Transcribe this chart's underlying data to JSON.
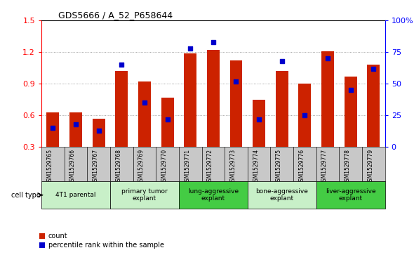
{
  "title": "GDS5666 / A_52_P658644",
  "samples": [
    "GSM1529765",
    "GSM1529766",
    "GSM1529767",
    "GSM1529768",
    "GSM1529769",
    "GSM1529770",
    "GSM1529771",
    "GSM1529772",
    "GSM1529773",
    "GSM1529774",
    "GSM1529775",
    "GSM1529776",
    "GSM1529777",
    "GSM1529778",
    "GSM1529779"
  ],
  "counts": [
    0.63,
    0.63,
    0.57,
    1.02,
    0.92,
    0.77,
    1.19,
    1.22,
    1.12,
    0.75,
    1.02,
    0.9,
    1.21,
    0.97,
    1.08
  ],
  "percentiles": [
    15,
    18,
    13,
    65,
    35,
    22,
    78,
    83,
    52,
    22,
    68,
    25,
    70,
    45,
    62
  ],
  "ylim_left": [
    0.3,
    1.5
  ],
  "ylim_right": [
    0,
    100
  ],
  "yticks_left": [
    0.3,
    0.6,
    0.9,
    1.2,
    1.5
  ],
  "yticks_right": [
    0,
    25,
    50,
    75,
    100
  ],
  "ytick_labels_right": [
    "0",
    "25",
    "50",
    "75",
    "100%"
  ],
  "bar_color": "#cc2200",
  "dot_color": "#0000cc",
  "cell_types": [
    {
      "label": "4T1 parental",
      "start": 0,
      "end": 3,
      "color": "#c8f0c8"
    },
    {
      "label": "primary tumor\nexplant",
      "start": 3,
      "end": 6,
      "color": "#c8f0c8"
    },
    {
      "label": "lung-aggressive\nexplant",
      "start": 6,
      "end": 9,
      "color": "#44cc44"
    },
    {
      "label": "bone-aggressive\nexplant",
      "start": 9,
      "end": 12,
      "color": "#c8f0c8"
    },
    {
      "label": "liver-aggressive\nexplant",
      "start": 12,
      "end": 15,
      "color": "#44cc44"
    }
  ],
  "grid_color": "#888888",
  "bg_color": "#ffffff",
  "tick_bg": "#c8c8c8",
  "cell_type_label": "cell type",
  "legend_count_label": "count",
  "legend_percentile_label": "percentile rank within the sample",
  "dot_size": 18,
  "bar_width": 0.55
}
